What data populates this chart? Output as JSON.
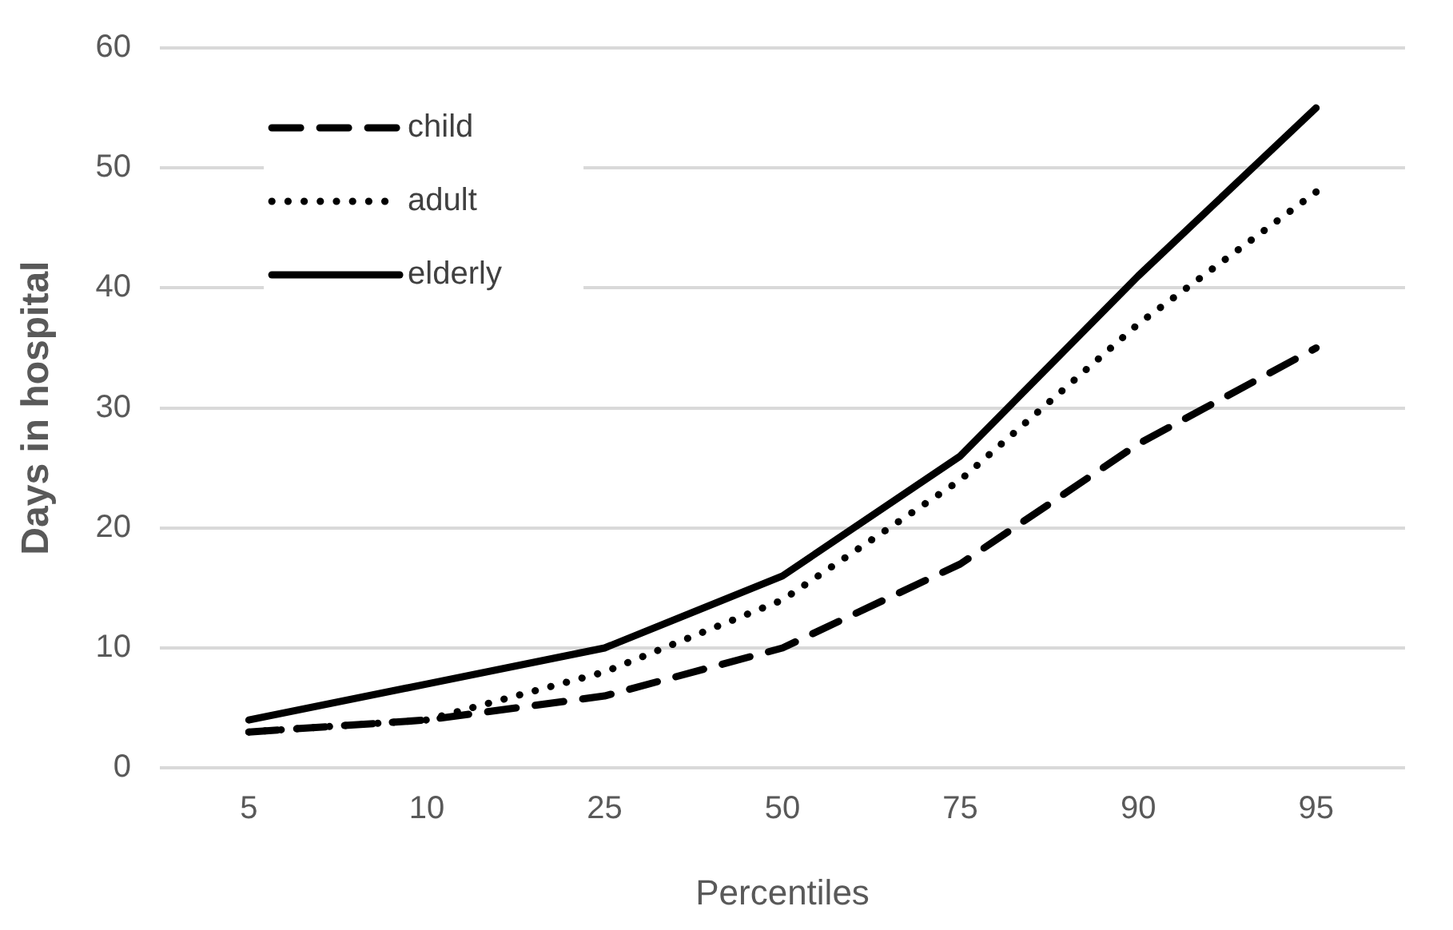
{
  "chart_data": {
    "type": "line",
    "xlabel": "Percentiles",
    "ylabel": "Days in hospital",
    "categories": [
      "5",
      "10",
      "25",
      "50",
      "75",
      "90",
      "95"
    ],
    "series": [
      {
        "name": "child",
        "color": "#000000",
        "line_style": "dashed",
        "values": [
          3,
          4,
          6,
          10,
          17,
          27,
          35
        ]
      },
      {
        "name": "adult",
        "color": "#000000",
        "line_style": "dotted",
        "values": [
          3,
          4,
          8,
          14,
          24,
          37,
          48
        ]
      },
      {
        "name": "elderly",
        "color": "#000000",
        "line_style": "solid",
        "values": [
          4,
          7,
          10,
          16,
          26,
          41,
          55
        ]
      }
    ],
    "ylim": [
      0,
      60
    ],
    "yticks": [
      0,
      10,
      20,
      30,
      40,
      50,
      60
    ],
    "grid": "y",
    "legend": "top left",
    "marker": "none"
  }
}
